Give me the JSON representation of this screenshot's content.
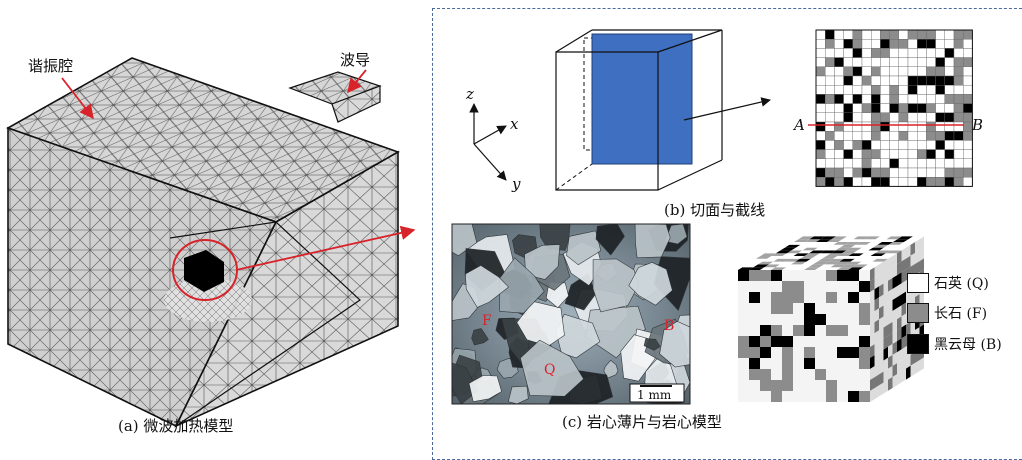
{
  "panel_a": {
    "label_cavity": "谐振腔",
    "label_waveguide": "波导",
    "caption": "(a) 微波加热模型"
  },
  "panel_b": {
    "axis_z": "z",
    "axis_x": "x",
    "axis_y": "y",
    "label_A": "A",
    "label_B": "B",
    "caption": "(b) 切面与截线"
  },
  "panel_c": {
    "mineral_F": "F",
    "mineral_Q": "Q",
    "mineral_B": "B",
    "scale_bar": "1 mm",
    "caption": "(c) 岩心薄片与岩心模型"
  },
  "legend": {
    "items": [
      {
        "label": "石英 (Q)",
        "color": "#ffffff"
      },
      {
        "label": "长石 (F)",
        "color": "#8c8c8c"
      },
      {
        "label": "黑云母 (B)",
        "color": "#000000"
      }
    ]
  },
  "colors": {
    "arrow_red": "#d8232a",
    "section_plane": "#3f6fc0",
    "frame_dashed": "#4b6a9b"
  }
}
